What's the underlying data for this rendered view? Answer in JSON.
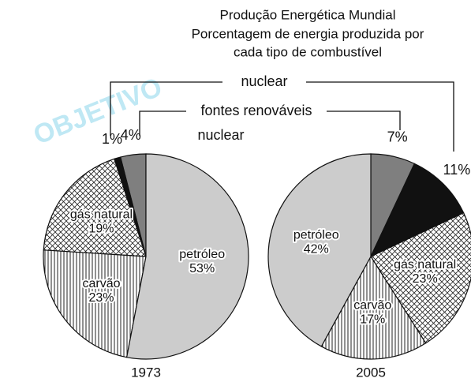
{
  "title": [
    "Produção Energética Mundial",
    "Porcentagem de energia produzida por",
    "cada tipo de combustível"
  ],
  "watermark": "OBJETIVO",
  "chart_data": [
    {
      "type": "pie",
      "label": "1973",
      "direction": "counterclockwise",
      "categories": [
        "fontes renováveis",
        "nuclear",
        "gás natural",
        "carvão",
        "petróleo"
      ],
      "values": [
        4,
        1,
        19,
        23,
        53
      ],
      "value_labels": [
        "4%",
        "1%",
        "19%",
        "23%",
        "53%"
      ],
      "colors": [
        "#7f7f7f",
        "#111111",
        "crosshatch",
        "vertical-lines",
        "#cccccc"
      ]
    },
    {
      "type": "pie",
      "label": "2005",
      "direction": "clockwise",
      "categories": [
        "fontes renováveis",
        "nuclear",
        "gás natural",
        "carvão",
        "petróleo"
      ],
      "values": [
        7,
        11,
        23,
        17,
        42
      ],
      "value_labels": [
        "7%",
        "11%",
        "23%",
        "17%",
        "42%"
      ],
      "colors": [
        "#7f7f7f",
        "#111111",
        "crosshatch",
        "vertical-lines",
        "#cccccc"
      ]
    }
  ]
}
